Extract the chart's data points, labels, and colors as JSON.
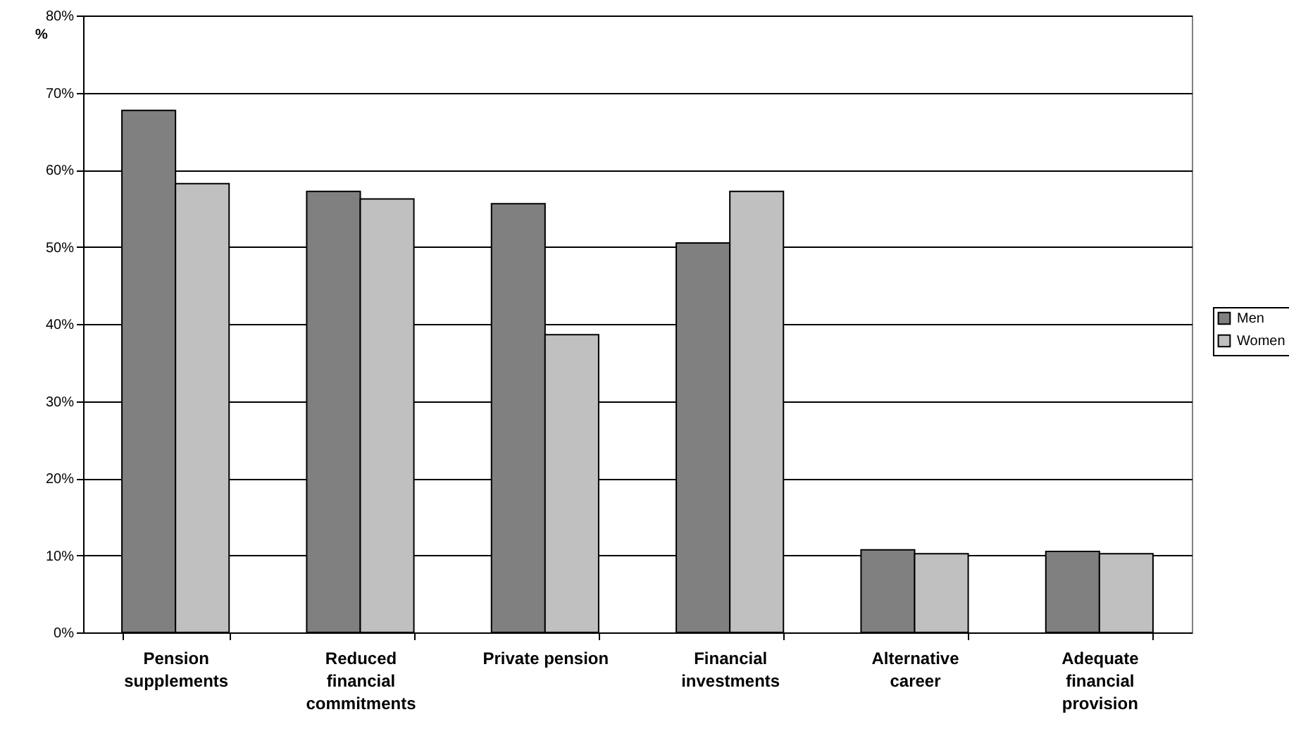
{
  "chart_data": {
    "type": "bar",
    "ylabel": "%",
    "categories": [
      "Pension supplements",
      "Reduced financial commitments",
      "Private pension",
      "Financial investments",
      "Alternative career",
      "Adequate financial provision"
    ],
    "series": [
      {
        "name": "Men",
        "color": "#808080",
        "values": [
          67.7,
          57.2,
          55.6,
          50.5,
          10.7,
          10.5
        ]
      },
      {
        "name": "Women",
        "color": "#c0c0c0",
        "values": [
          58.2,
          56.2,
          38.6,
          57.2,
          10.2,
          10.2
        ]
      }
    ],
    "ylim": [
      0,
      80
    ],
    "yticks": [
      {
        "value": 0,
        "label": "0%"
      },
      {
        "value": 10,
        "label": "10%"
      },
      {
        "value": 20,
        "label": "20%"
      },
      {
        "value": 30,
        "label": "30%"
      },
      {
        "value": 40,
        "label": "40%"
      },
      {
        "value": 50,
        "label": "50%"
      },
      {
        "value": 60,
        "label": "60%"
      },
      {
        "value": 70,
        "label": "70%"
      },
      {
        "value": 80,
        "label": "80%"
      }
    ],
    "grid": "y",
    "legend": "right"
  }
}
